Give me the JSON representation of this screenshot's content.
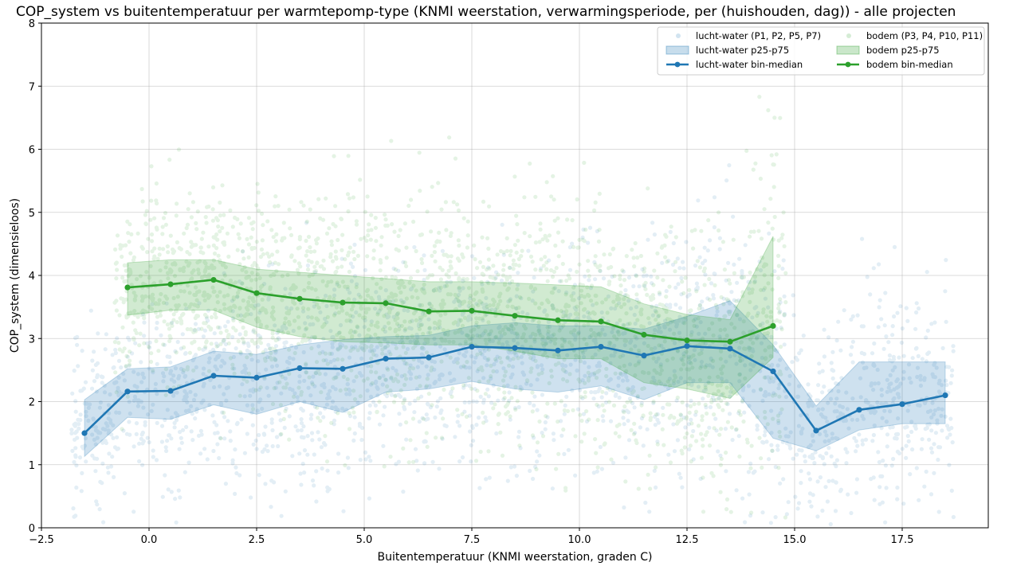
{
  "chart_data": {
    "type": "line",
    "title": "COP_system vs buitentemperatuur per warmtepomp-type (KNMI weerstation, verwarmingsperiode, per (huishouden, dag))  -  alle projecten",
    "xlabel": "Buitentemperatuur (KNMI weerstation, graden C)",
    "ylabel": "COP_system (dimensieloos)",
    "xlim": [
      -2.5,
      19.5
    ],
    "ylim": [
      0,
      8
    ],
    "xticks": [
      -2.5,
      0.0,
      2.5,
      5.0,
      7.5,
      10.0,
      12.5,
      15.0,
      17.5
    ],
    "xtick_labels": [
      "−2.5",
      "0.0",
      "2.5",
      "5.0",
      "7.5",
      "10.0",
      "12.5",
      "15.0",
      "17.5"
    ],
    "yticks": [
      0,
      1,
      2,
      3,
      4,
      5,
      6,
      7,
      8
    ],
    "ytick_labels": [
      "0",
      "1",
      "2",
      "3",
      "4",
      "5",
      "6",
      "7",
      "8"
    ],
    "grid": true,
    "legend_position": "top-right",
    "series": [
      {
        "name": "lucht-water bin-median",
        "kind": "line",
        "color": "#1f77b4",
        "x": [
          -1.5,
          -0.5,
          0.5,
          1.5,
          2.5,
          3.5,
          4.5,
          5.5,
          6.5,
          7.5,
          8.5,
          9.5,
          10.5,
          11.5,
          12.5,
          13.5,
          14.5,
          15.5,
          16.5,
          17.5,
          18.5
        ],
        "y": [
          1.5,
          2.16,
          2.17,
          2.41,
          2.38,
          2.53,
          2.52,
          2.68,
          2.7,
          2.87,
          2.85,
          2.81,
          2.87,
          2.73,
          2.88,
          2.84,
          2.48,
          1.54,
          1.87,
          1.96,
          2.1
        ]
      },
      {
        "name": "bodem bin-median",
        "kind": "line",
        "color": "#2ca02c",
        "x": [
          -0.5,
          0.5,
          1.5,
          2.5,
          3.5,
          4.5,
          5.5,
          6.5,
          7.5,
          8.5,
          9.5,
          10.5,
          11.5,
          12.5,
          13.5,
          14.5
        ],
        "y": [
          3.81,
          3.86,
          3.93,
          3.72,
          3.63,
          3.57,
          3.56,
          3.43,
          3.44,
          3.36,
          3.29,
          3.27,
          3.06,
          2.97,
          2.95,
          3.2
        ]
      },
      {
        "name": "lucht-water p25-p75",
        "kind": "band",
        "color": "#1f77b4",
        "x": [
          -1.5,
          -0.5,
          0.5,
          1.5,
          2.5,
          3.5,
          4.5,
          5.5,
          6.5,
          7.5,
          8.5,
          9.5,
          10.5,
          11.5,
          12.5,
          13.5,
          14.5,
          15.5,
          16.5,
          17.5,
          18.5
        ],
        "low": [
          1.13,
          1.75,
          1.72,
          1.95,
          1.8,
          2.0,
          1.83,
          2.15,
          2.2,
          2.32,
          2.2,
          2.15,
          2.25,
          2.03,
          2.3,
          2.3,
          1.42,
          1.22,
          1.55,
          1.65,
          1.65
        ],
        "high": [
          2.03,
          2.52,
          2.55,
          2.8,
          2.75,
          2.9,
          2.98,
          3.03,
          3.05,
          3.2,
          3.25,
          3.2,
          3.2,
          3.15,
          3.35,
          3.6,
          2.9,
          1.93,
          2.63,
          2.63,
          2.63
        ]
      },
      {
        "name": "bodem p25-p75",
        "kind": "band",
        "color": "#2ca02c",
        "x": [
          -0.5,
          0.5,
          1.5,
          2.5,
          3.5,
          4.5,
          5.5,
          6.5,
          7.5,
          8.5,
          9.5,
          10.5,
          11.5,
          12.5,
          13.5,
          14.5
        ],
        "low": [
          3.37,
          3.45,
          3.45,
          3.18,
          3.03,
          2.95,
          2.93,
          2.9,
          2.9,
          2.8,
          2.68,
          2.68,
          2.3,
          2.2,
          2.05,
          2.7
        ],
        "high": [
          4.2,
          4.25,
          4.25,
          4.1,
          4.05,
          4.0,
          3.95,
          3.9,
          3.9,
          3.88,
          3.85,
          3.82,
          3.55,
          3.38,
          3.3,
          4.62
        ]
      },
      {
        "name": "lucht-water (P1, P2, P5, P7)",
        "kind": "scatter",
        "color": "#1f77b4",
        "x_range": [
          -1.8,
          18.7
        ],
        "note_count": 2200
      },
      {
        "name": "bodem (P3, P4, P10, P11)",
        "kind": "scatter",
        "color": "#2ca02c",
        "x_range": [
          -0.8,
          14.8
        ],
        "note_count": 2200
      }
    ],
    "legend": [
      [
        "lucht-water (P1, P2, P5, P7)",
        "bodem (P3, P4, P10, P11)"
      ],
      [
        "lucht-water p25-p75",
        "bodem p25-p75"
      ],
      [
        "lucht-water bin-median",
        "bodem bin-median"
      ]
    ]
  }
}
